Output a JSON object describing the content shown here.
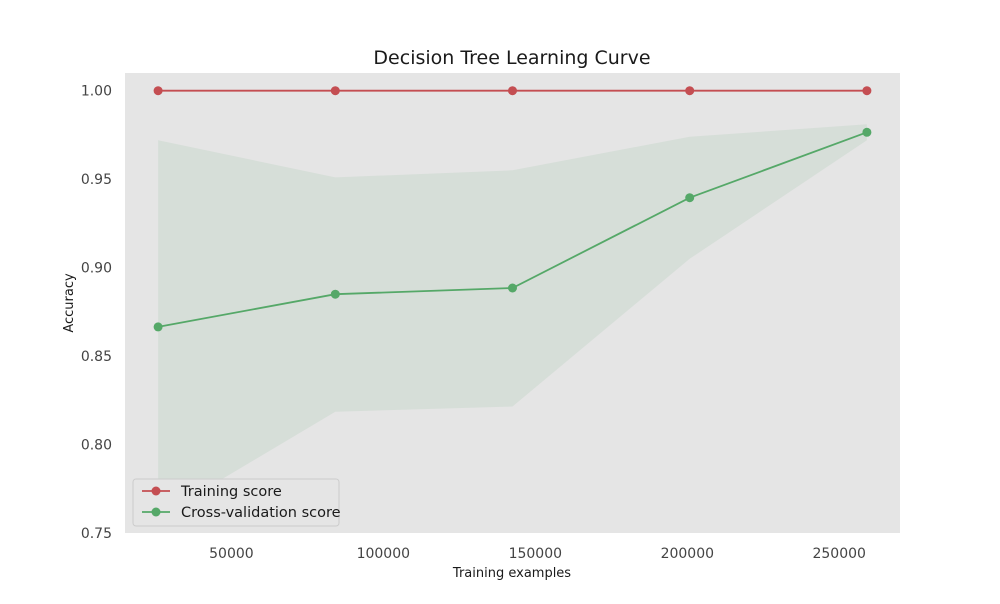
{
  "chart_data": {
    "type": "line",
    "title": "Decision Tree Learning Curve",
    "xlabel": "Training examples",
    "ylabel": "Accuracy",
    "xlim": [
      15000,
      270000
    ],
    "ylim": [
      0.75,
      1.01
    ],
    "xticks": [
      50000,
      100000,
      150000,
      200000,
      250000
    ],
    "xtick_labels": [
      "50000",
      "100000",
      "150000",
      "200000",
      "250000"
    ],
    "yticks": [
      0.75,
      0.8,
      0.85,
      0.9,
      0.95,
      1.0
    ],
    "ytick_labels": [
      "0.75",
      "0.80",
      "0.85",
      "0.90",
      "0.95",
      "1.00"
    ],
    "grid": false,
    "legend_position": "lower-left",
    "x": [
      25900,
      84200,
      142500,
      200800,
      259100
    ],
    "series": [
      {
        "name": "Training score",
        "color": "#c44e52",
        "values": [
          1.0,
          1.0,
          1.0,
          1.0,
          1.0
        ],
        "band_low": [
          1.0,
          1.0,
          1.0,
          1.0,
          1.0
        ],
        "band_high": [
          1.0,
          1.0,
          1.0,
          1.0,
          1.0
        ]
      },
      {
        "name": "Cross-validation score",
        "color": "#55a868",
        "values": [
          0.8665,
          0.885,
          0.8885,
          0.9395,
          0.9765
        ],
        "band_low": [
          0.759,
          0.8185,
          0.8215,
          0.905,
          0.972
        ],
        "band_high": [
          0.972,
          0.951,
          0.955,
          0.974,
          0.981
        ]
      }
    ]
  }
}
